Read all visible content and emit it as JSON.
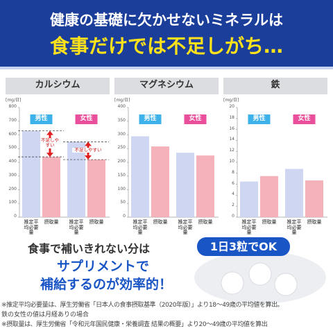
{
  "header": {
    "title": "健康の基礎に欠かせないミネラルは",
    "subtitle": "食事だけでは不足しがち…"
  },
  "chart_data": [
    {
      "type": "bar",
      "title": "カルシウム",
      "y_label": "[mg/日]",
      "categories": [
        "男性",
        "女性"
      ],
      "category_colors": [
        "#3db2ea",
        "#ea4f9b"
      ],
      "series": [
        {
          "name": "推定平均必要量",
          "color": "#c9d2f1",
          "values": [
            630,
            550
          ]
        },
        {
          "name": "摂取量",
          "color": "#f4aab2",
          "values": [
            440,
            420
          ]
        }
      ],
      "ylim": [
        0,
        800
      ],
      "yticks": [
        0,
        100,
        200,
        300,
        400,
        500,
        600,
        700,
        800
      ],
      "annotations": [
        "不足しやすい",
        "不足しやすい"
      ]
    },
    {
      "type": "bar",
      "title": "マグネシウム",
      "y_label": "[mg/日]",
      "categories": [
        "男性",
        "女性"
      ],
      "category_colors": [
        "#3db2ea",
        "#ea4f9b"
      ],
      "series": [
        {
          "name": "推定平均必要量",
          "color": "#c9d2f1",
          "values": [
            295,
            235
          ]
        },
        {
          "name": "摂取量",
          "color": "#f4aab2",
          "values": [
            258,
            225
          ]
        }
      ],
      "ylim": [
        0,
        400
      ],
      "yticks": [
        0,
        50,
        100,
        150,
        200,
        250,
        300,
        350,
        400
      ]
    },
    {
      "type": "bar",
      "title": "鉄",
      "y_label": "[mg/日]",
      "categories": [
        "男性",
        "女性"
      ],
      "category_colors": [
        "#3db2ea",
        "#ea4f9b"
      ],
      "series": [
        {
          "name": "推定平均必要量",
          "color": "#c9d2f1",
          "values": [
            6.5,
            8.8
          ]
        },
        {
          "name": "摂取量",
          "color": "#f4aab2",
          "values": [
            7.5,
            6.7
          ]
        }
      ],
      "ylim": [
        0,
        20
      ],
      "yticks": [
        0,
        2,
        4,
        6,
        8,
        10,
        12,
        14,
        16,
        18,
        20
      ]
    }
  ],
  "promo": {
    "line1": "食事で補いきれない分は",
    "line2": "サプリメントで",
    "line3": "補給するのが効率的！",
    "badge": "1日3粒でOK"
  },
  "notes": [
    "※推定平均必要量は、厚生労働省「日本人の食事摂取基準（2020年版）」より18〜49歳の平均値を算出。",
    "鉄の女性の値は月経ありの場合",
    "※摂取量は、厚生労働省「令和元年国民健康・栄養調査 結果の概要」より20〜49歳の平均値を算出"
  ]
}
